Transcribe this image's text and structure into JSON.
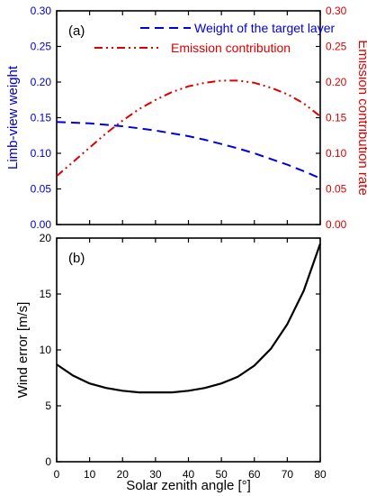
{
  "chart_data": [
    {
      "type": "line",
      "panel_label": "(a)",
      "xlabel": "",
      "ylabel_left": "Limb-view weight",
      "ylabel_right": "Emission contribution rate",
      "xlim": [
        0,
        80
      ],
      "ylim_left": [
        0.0,
        0.3
      ],
      "ylim_right": [
        0.0,
        0.3
      ],
      "x_ticks": [
        0,
        10,
        20,
        30,
        40,
        50,
        60,
        70,
        80
      ],
      "y_ticks_left": [
        "0.00",
        "0.05",
        "0.10",
        "0.15",
        "0.20",
        "0.25",
        "0.30"
      ],
      "y_ticks_right": [
        "0.00",
        "0.05",
        "0.10",
        "0.15",
        "0.20",
        "0.25",
        "0.30"
      ],
      "legend_position": "top-right",
      "colors": {
        "left_axis": "#0000cc",
        "right_axis": "#dd0000"
      },
      "series": [
        {
          "name": "Weight of the target layer",
          "axis": "left",
          "style": "dashed",
          "color": "#0000dd",
          "x": [
            0,
            5,
            10,
            15,
            20,
            25,
            30,
            35,
            40,
            45,
            50,
            55,
            60,
            65,
            70,
            75,
            80
          ],
          "values": [
            0.144,
            0.143,
            0.142,
            0.14,
            0.138,
            0.135,
            0.132,
            0.128,
            0.124,
            0.119,
            0.113,
            0.107,
            0.1,
            0.092,
            0.084,
            0.075,
            0.065
          ]
        },
        {
          "name": "Emission contribution",
          "axis": "right",
          "style": "dash-dot-dot",
          "color": "#dd0000",
          "x": [
            0,
            5,
            10,
            15,
            20,
            25,
            30,
            35,
            40,
            45,
            50,
            55,
            60,
            65,
            70,
            75,
            80
          ],
          "values": [
            0.068,
            0.088,
            0.108,
            0.128,
            0.146,
            0.162,
            0.175,
            0.186,
            0.194,
            0.199,
            0.202,
            0.202,
            0.199,
            0.192,
            0.183,
            0.17,
            0.152
          ]
        }
      ]
    },
    {
      "type": "line",
      "panel_label": "(b)",
      "xlabel": "Solar zenith angle [°]",
      "ylabel": "Wind error [m/s]",
      "xlim": [
        0,
        80
      ],
      "ylim": [
        0,
        20
      ],
      "x_ticks": [
        0,
        10,
        20,
        30,
        40,
        50,
        60,
        70,
        80
      ],
      "y_ticks": [
        0,
        5,
        10,
        15,
        20
      ],
      "series": [
        {
          "style": "solid",
          "color": "#000000",
          "x": [
            0,
            5,
            10,
            15,
            20,
            25,
            30,
            35,
            40,
            45,
            50,
            55,
            60,
            65,
            70,
            75,
            80
          ],
          "values": [
            8.7,
            7.7,
            7.0,
            6.6,
            6.35,
            6.2,
            6.2,
            6.2,
            6.35,
            6.6,
            7.0,
            7.6,
            8.6,
            10.1,
            12.3,
            15.3,
            19.5
          ]
        }
      ]
    }
  ]
}
